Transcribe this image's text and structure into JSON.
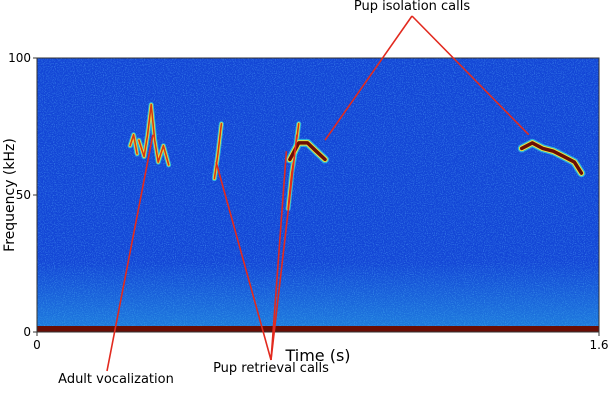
{
  "chart_data": {
    "type": "heatmap",
    "subtype": "spectrogram",
    "title": "",
    "xlabel": "Time (s)",
    "ylabel": "Frequency (kHz)",
    "xlim": [
      0,
      1.6
    ],
    "ylim": [
      0,
      100
    ],
    "x_ticks": [
      "0",
      "1.6"
    ],
    "y_ticks": [
      "0",
      "50",
      "100"
    ],
    "grid": false,
    "colormap": [
      "#0a1f9e",
      "#1146d8",
      "#2e8cf0",
      "#33d6e0",
      "#f2e640",
      "#d23a12",
      "#6a0d05"
    ],
    "background_color": "#1346d6",
    "line_color": "#e22a1f",
    "calls": [
      {
        "kind": "adult",
        "points": [
          [
            0.29,
            70
          ],
          [
            0.305,
            64
          ],
          [
            0.315,
            72
          ],
          [
            0.325,
            83
          ],
          [
            0.335,
            70
          ],
          [
            0.345,
            62
          ],
          [
            0.36,
            68
          ],
          [
            0.375,
            61
          ]
        ]
      },
      {
        "kind": "adult",
        "points": [
          [
            0.265,
            68
          ],
          [
            0.275,
            72
          ],
          [
            0.285,
            65
          ]
        ]
      },
      {
        "kind": "retrieval",
        "points": [
          [
            0.505,
            56
          ],
          [
            0.515,
            65
          ],
          [
            0.525,
            76
          ]
        ]
      },
      {
        "kind": "retrieval",
        "points": [
          [
            0.715,
            45
          ],
          [
            0.725,
            58
          ],
          [
            0.735,
            66
          ],
          [
            0.745,
            76
          ]
        ]
      },
      {
        "kind": "isolation",
        "points": [
          [
            0.72,
            63
          ],
          [
            0.745,
            69
          ],
          [
            0.77,
            69
          ],
          [
            0.795,
            66
          ],
          [
            0.82,
            63
          ]
        ]
      },
      {
        "kind": "isolation",
        "points": [
          [
            1.38,
            67
          ],
          [
            1.41,
            69
          ],
          [
            1.44,
            67
          ],
          [
            1.47,
            66
          ],
          [
            1.5,
            64
          ],
          [
            1.53,
            62
          ],
          [
            1.55,
            58
          ]
        ]
      }
    ],
    "annotations": [
      {
        "text": "Pup isolation calls",
        "points_to": [
          [
            0.82,
            70
          ],
          [
            1.4,
            72
          ]
        ]
      },
      {
        "text": "Adult vocalization",
        "points_to": [
          [
            0.33,
            72
          ]
        ]
      },
      {
        "text": "Pup retrieval calls",
        "points_to": [
          [
            0.51,
            62
          ],
          [
            0.71,
            66
          ],
          [
            0.74,
            72
          ]
        ]
      }
    ]
  }
}
